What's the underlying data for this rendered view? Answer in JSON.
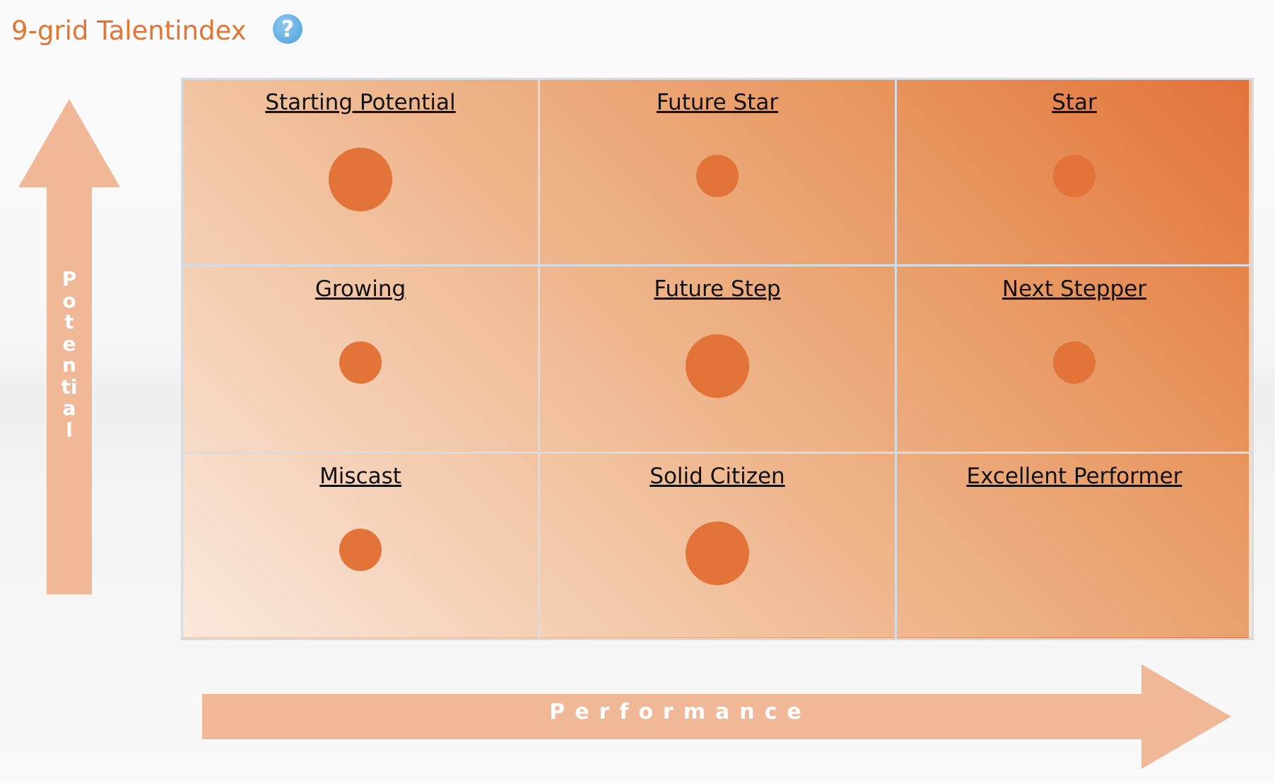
{
  "header": {
    "title": "9-grid Talentindex",
    "help_icon": "question-circle-icon",
    "help_glyph": "?"
  },
  "axes": {
    "y_label": "Potential",
    "x_label": "Performance",
    "arrow_color": "#f1b897"
  },
  "colors": {
    "accent": "#e27533",
    "dot": "#e2743a",
    "help": "#5aa9e0"
  },
  "grid": {
    "rows": [
      [
        {
          "label": "Starting Potential",
          "dot_size": "large"
        },
        {
          "label": "Future Star",
          "dot_size": "small"
        },
        {
          "label": "Star",
          "dot_size": "small"
        }
      ],
      [
        {
          "label": "Growing",
          "dot_size": "small"
        },
        {
          "label": "Future Step",
          "dot_size": "large"
        },
        {
          "label": "Next Stepper",
          "dot_size": "small"
        }
      ],
      [
        {
          "label": "Miscast",
          "dot_size": "small"
        },
        {
          "label": "Solid Citizen",
          "dot_size": "large"
        },
        {
          "label": "Excellent Performer",
          "dot_size": "none"
        }
      ]
    ]
  }
}
